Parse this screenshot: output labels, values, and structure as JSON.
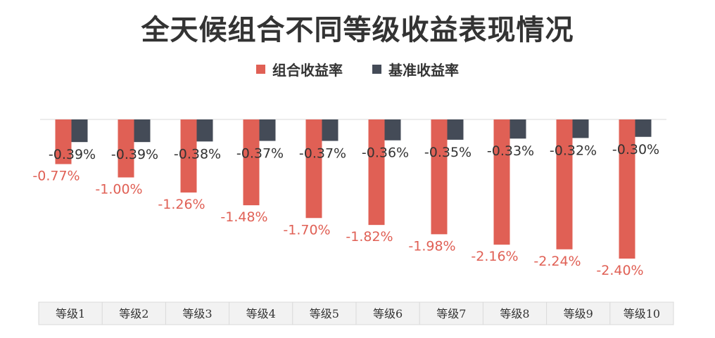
{
  "chart_data": {
    "type": "bar",
    "title": "全天候组合不同等级收益表现情况",
    "categories": [
      "等级1",
      "等级2",
      "等级3",
      "等级4",
      "等级5",
      "等级6",
      "等级7",
      "等级8",
      "等级9",
      "等级10"
    ],
    "series": [
      {
        "name": "组合收益率",
        "color": "#E06055",
        "values": [
          -0.77,
          -1.0,
          -1.26,
          -1.48,
          -1.7,
          -1.82,
          -1.98,
          -2.16,
          -2.24,
          -2.4
        ],
        "labels": [
          "-0.77%",
          "-1.00%",
          "-1.26%",
          "-1.48%",
          "-1.70%",
          "-1.82%",
          "-1.98%",
          "-2.16%",
          "-2.24%",
          "-2.40%"
        ]
      },
      {
        "name": "基准收益率",
        "color": "#444B57",
        "values": [
          -0.39,
          -0.39,
          -0.38,
          -0.37,
          -0.37,
          -0.36,
          -0.35,
          -0.33,
          -0.32,
          -0.3
        ],
        "labels": [
          "-0.39%",
          "-0.39%",
          "-0.38%",
          "-0.37%",
          "-0.37%",
          "-0.36%",
          "-0.35%",
          "-0.33%",
          "-0.32%",
          "-0.30%"
        ]
      }
    ],
    "ylim": [
      -2.4,
      0
    ],
    "grid": false,
    "legend_position": "top-center",
    "axis_line_color": "#D9D9D9",
    "table_border_color": "#D9D9D9",
    "table_background": "#F2F2F2"
  }
}
